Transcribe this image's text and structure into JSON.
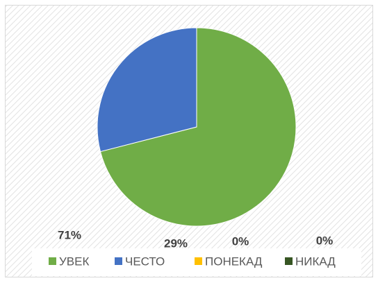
{
  "chart_data": {
    "type": "pie",
    "categories": [
      "УВЕК",
      "ЧЕСТО",
      "ПОНЕКАД",
      "НИКАД"
    ],
    "values": [
      71,
      29,
      0,
      0
    ],
    "value_labels": [
      "71%",
      "29%",
      "0%",
      "0%"
    ],
    "colors": [
      "#70ad47",
      "#4472c4",
      "#ffc000",
      "#375623"
    ],
    "legend": "bottom"
  }
}
